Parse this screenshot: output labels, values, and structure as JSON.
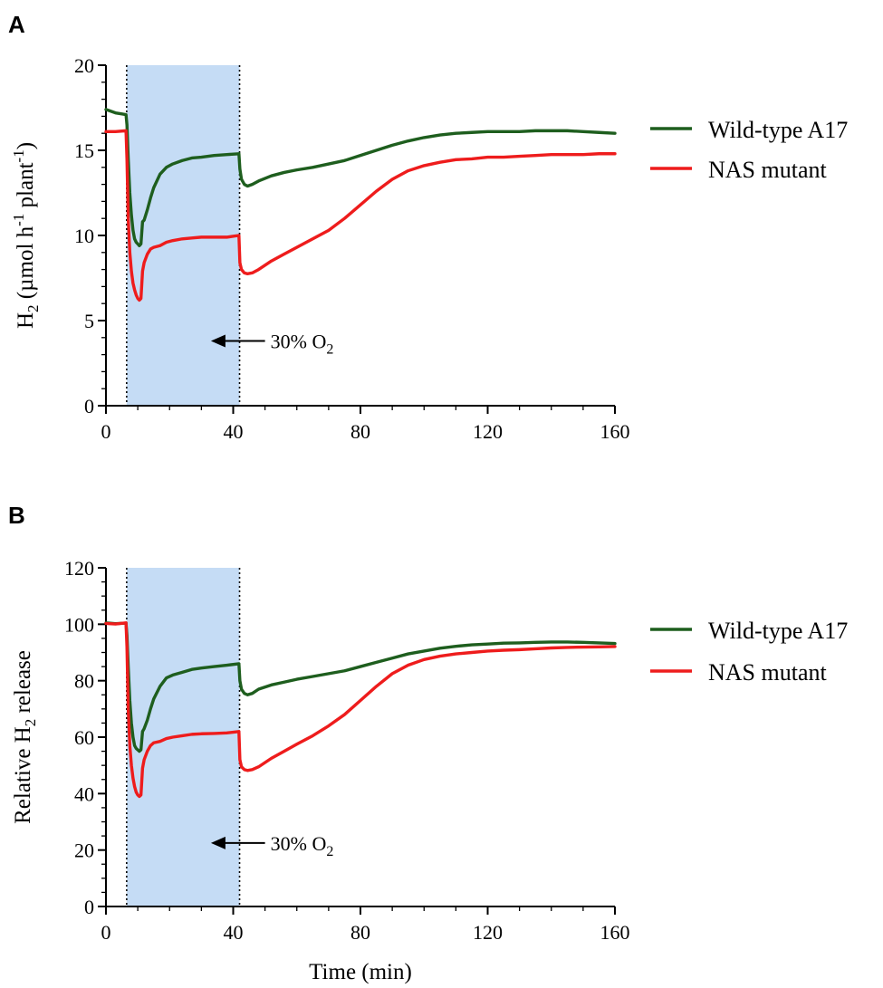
{
  "figure": {
    "width": 975,
    "height": 1091
  },
  "colors": {
    "wild_type": "#1e5e1e",
    "nas_mutant": "#ee1c1c",
    "shade": "#c5dcf5",
    "axis": "#000000"
  },
  "chart_data": [
    {
      "type": "line",
      "panel_label": "A",
      "title": "",
      "ylabel": {
        "base": "H",
        "sub": "2",
        "rest": " (µmol h",
        "sup1": "-1",
        "mid": " plant",
        "sup2": "-1",
        "end": ")"
      },
      "xlabel": "",
      "xlim": [
        0,
        160
      ],
      "ylim": [
        0,
        20
      ],
      "xticks": [
        0,
        40,
        80,
        120,
        160
      ],
      "yticks": [
        0,
        5,
        10,
        15,
        20
      ],
      "y_minor_step": 1,
      "x_minor_step": 10,
      "shaded_region": [
        6.5,
        42
      ],
      "vlines": [
        6.5,
        42
      ],
      "annotation": {
        "text": "30% O",
        "sub": "2",
        "arrow_from_x": 50,
        "arrow_to_x": 33,
        "y": 3.8
      },
      "legend": {
        "position": "right",
        "entries": [
          "Wild-type A17",
          "NAS mutant"
        ]
      },
      "series": [
        {
          "name": "Wild-type A17",
          "color_key": "wild_type",
          "x": [
            0,
            3,
            6.3,
            6.6,
            7,
            7.5,
            8,
            8.5,
            9,
            9.5,
            10,
            10.5,
            11,
            11.5,
            12,
            13,
            14,
            15,
            17,
            19,
            21,
            24,
            27,
            30,
            34,
            38,
            41.8,
            42.1,
            42.6,
            43.5,
            44.5,
            46,
            48,
            52,
            56,
            60,
            65,
            70,
            75,
            80,
            85,
            90,
            95,
            100,
            105,
            110,
            115,
            120,
            125,
            130,
            135,
            140,
            145,
            150,
            155,
            160
          ],
          "y": [
            17.4,
            17.2,
            17.1,
            16.5,
            14.5,
            12.5,
            11.2,
            10.3,
            9.8,
            9.6,
            9.5,
            9.4,
            9.5,
            10.8,
            10.9,
            11.5,
            12.2,
            12.8,
            13.6,
            14.0,
            14.2,
            14.4,
            14.55,
            14.6,
            14.7,
            14.75,
            14.8,
            13.9,
            13.3,
            13.0,
            12.9,
            13.0,
            13.2,
            13.5,
            13.7,
            13.85,
            14.0,
            14.2,
            14.4,
            14.7,
            15.0,
            15.3,
            15.55,
            15.75,
            15.9,
            16.0,
            16.05,
            16.1,
            16.1,
            16.1,
            16.15,
            16.15,
            16.15,
            16.1,
            16.05,
            16.0
          ]
        },
        {
          "name": "NAS mutant",
          "color_key": "nas_mutant",
          "x": [
            0,
            3,
            6.3,
            6.6,
            7,
            7.5,
            8,
            8.5,
            9,
            9.5,
            10,
            10.5,
            11,
            11.5,
            12,
            13,
            14,
            15,
            17,
            19,
            21,
            24,
            27,
            30,
            34,
            38,
            41.8,
            42.1,
            42.6,
            43.5,
            44.5,
            46,
            48,
            52,
            56,
            60,
            65,
            70,
            75,
            80,
            85,
            90,
            95,
            100,
            105,
            110,
            115,
            120,
            125,
            130,
            135,
            140,
            145,
            150,
            155,
            160
          ],
          "y": [
            16.1,
            16.1,
            16.15,
            14.5,
            11.0,
            9.0,
            7.9,
            7.2,
            6.8,
            6.5,
            6.3,
            6.2,
            6.3,
            7.9,
            8.4,
            8.9,
            9.2,
            9.3,
            9.4,
            9.6,
            9.7,
            9.8,
            9.85,
            9.9,
            9.9,
            9.9,
            10.0,
            8.4,
            8.0,
            7.8,
            7.75,
            7.8,
            8.0,
            8.5,
            8.9,
            9.3,
            9.8,
            10.3,
            11.0,
            11.8,
            12.6,
            13.3,
            13.8,
            14.1,
            14.3,
            14.45,
            14.5,
            14.6,
            14.6,
            14.65,
            14.7,
            14.75,
            14.75,
            14.75,
            14.8,
            14.8
          ]
        }
      ]
    },
    {
      "type": "line",
      "panel_label": "B",
      "title": "",
      "ylabel": {
        "base": "Relative H",
        "sub": "2",
        "rest": " release",
        "sup1": "",
        "mid": "",
        "sup2": "",
        "end": ""
      },
      "xlabel": "Time (min)",
      "xlim": [
        0,
        160
      ],
      "ylim": [
        0,
        120
      ],
      "xticks": [
        0,
        40,
        80,
        120,
        160
      ],
      "yticks": [
        0,
        20,
        40,
        60,
        80,
        100,
        120
      ],
      "y_minor_step": 5,
      "x_minor_step": 10,
      "shaded_region": [
        6.5,
        42
      ],
      "vlines": [
        6.5,
        42
      ],
      "annotation": {
        "text": "30% O",
        "sub": "2",
        "arrow_from_x": 50,
        "arrow_to_x": 33,
        "y": 22.5
      },
      "legend": {
        "position": "right",
        "entries": [
          "Wild-type A17",
          "NAS mutant"
        ]
      },
      "series": [
        {
          "name": "Wild-type A17",
          "color_key": "wild_type",
          "x": [
            0,
            3,
            6.3,
            6.6,
            7,
            7.5,
            8,
            8.5,
            9,
            9.5,
            10,
            10.5,
            11,
            11.5,
            12,
            13,
            14,
            15,
            17,
            19,
            21,
            24,
            27,
            30,
            34,
            38,
            41.8,
            42.1,
            42.6,
            43.5,
            44.5,
            46,
            48,
            52,
            56,
            60,
            65,
            70,
            75,
            80,
            85,
            90,
            95,
            100,
            105,
            110,
            115,
            120,
            125,
            130,
            135,
            140,
            145,
            150,
            155,
            160
          ],
          "y": [
            100.5,
            100.2,
            100.4,
            96,
            85,
            73,
            65,
            60,
            57,
            56,
            55.5,
            55,
            55.5,
            62,
            63,
            66,
            70,
            73.5,
            78,
            81,
            82,
            83,
            84,
            84.5,
            85,
            85.5,
            86,
            80,
            77,
            75.5,
            75,
            75.5,
            77,
            78.5,
            79.5,
            80.5,
            81.5,
            82.5,
            83.5,
            85,
            86.5,
            88,
            89.5,
            90.5,
            91.5,
            92.2,
            92.7,
            93,
            93.3,
            93.4,
            93.6,
            93.7,
            93.7,
            93.6,
            93.4,
            93.2
          ]
        },
        {
          "name": "NAS mutant",
          "color_key": "nas_mutant",
          "x": [
            0,
            3,
            6.3,
            6.6,
            7,
            7.5,
            8,
            8.5,
            9,
            9.5,
            10,
            10.5,
            11,
            11.5,
            12,
            13,
            14,
            15,
            17,
            19,
            21,
            24,
            27,
            30,
            34,
            38,
            41.8,
            42.1,
            42.6,
            43.5,
            44.5,
            46,
            48,
            52,
            56,
            60,
            65,
            70,
            75,
            80,
            85,
            90,
            95,
            100,
            105,
            110,
            115,
            120,
            125,
            130,
            135,
            140,
            145,
            150,
            155,
            160
          ],
          "y": [
            100.3,
            100.1,
            100.5,
            92,
            70,
            57,
            50,
            45.5,
            42.5,
            40.5,
            39.5,
            39,
            39.5,
            49,
            52,
            55,
            57,
            58,
            58.5,
            59.5,
            60,
            60.5,
            61,
            61.2,
            61.3,
            61.5,
            62,
            52,
            49.5,
            48.5,
            48.2,
            48.5,
            49.5,
            52.5,
            55,
            57.5,
            60.5,
            64,
            68,
            73,
            78,
            82.5,
            85.5,
            87.5,
            88.7,
            89.5,
            90,
            90.5,
            90.8,
            91,
            91.3,
            91.6,
            91.8,
            91.9,
            92,
            92.1
          ]
        }
      ]
    }
  ]
}
